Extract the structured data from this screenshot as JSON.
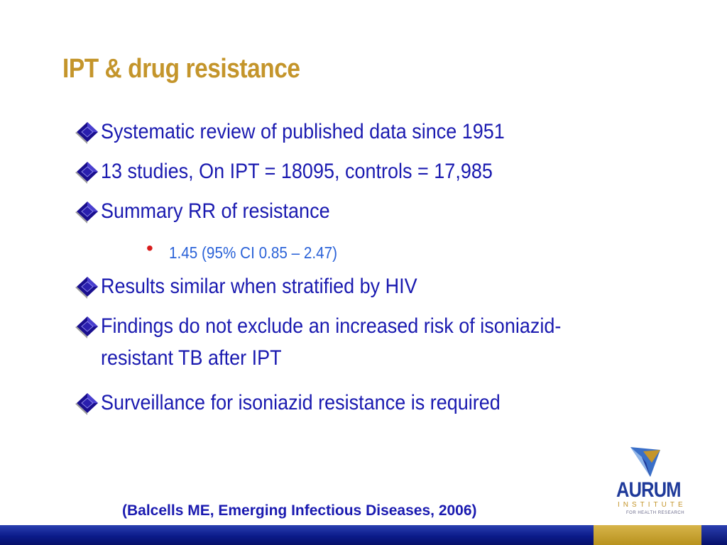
{
  "slide": {
    "title": "IPT & drug resistance",
    "bullets": [
      {
        "text": "Systematic review of published data since 1951",
        "icon": "diamond-bullet-icon"
      },
      {
        "text": "13 studies, On IPT = 18095, controls  = 17,985",
        "icon": "diamond-bullet-icon"
      },
      {
        "text": "Summary RR of resistance",
        "icon": "diamond-bullet-icon"
      },
      {
        "text": "Results similar when stratified by HIV",
        "icon": "diamond-bullet-icon"
      },
      {
        "text_line1": "Findings do not exclude an increased risk of isoniazid-",
        "text_line2": "resistant TB after IPT",
        "icon": "diamond-bullet-icon"
      },
      {
        "text": "Surveillance for isoniazid resistance is required",
        "icon": "diamond-bullet-icon"
      }
    ],
    "sub_bullet": {
      "text": "1.45 (95% CI 0.85 – 2.47)",
      "icon": "red-dot-icon"
    },
    "citation": "(Balcells ME, Emerging Infectious Diseases, 2006)",
    "logo": {
      "name": "AURUM",
      "subtitle": "INSTITUTE",
      "tagline": "FOR HEALTH RESEARCH"
    },
    "colors": {
      "title": "#c4952b",
      "bullet_text": "#1a1ab0",
      "sub_bullet_text": "#2a62d8",
      "sub_bullet_dot": "#d81b1b",
      "footer_blue": "#0b1b8a",
      "footer_gold": "#b8921e"
    }
  }
}
